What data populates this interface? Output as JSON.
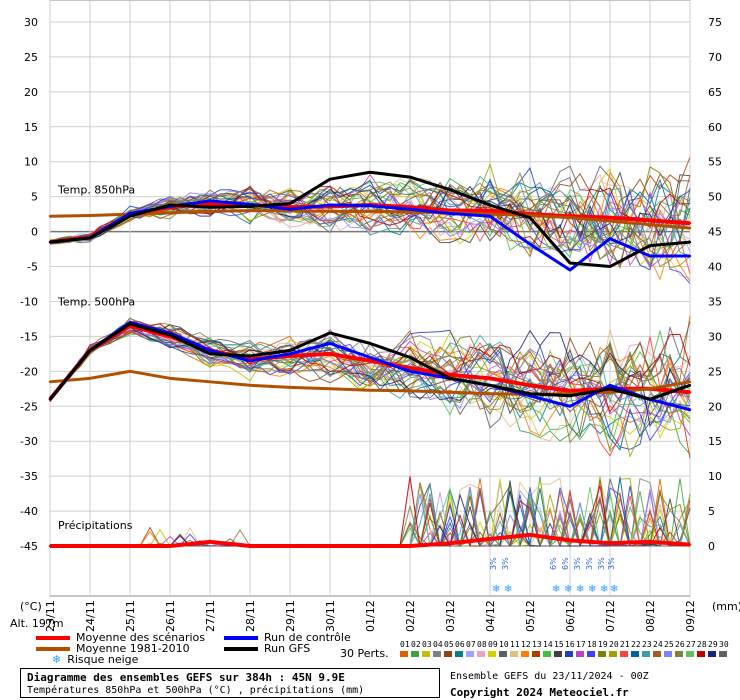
{
  "chart_data": {
    "type": "line",
    "title": "Diagramme des ensembles GEFS sur 384h : 45N 9.9E",
    "subtitle": "Températures 850hPa et 500hPa (°C) , précipitations (mm)",
    "left_axis_label": "(°C)",
    "right_axis_label": "(mm)",
    "altitude_label": "Alt. 197m",
    "left_ticks": [
      30,
      25,
      20,
      15,
      10,
      5,
      0,
      -5,
      -10,
      -15,
      -20,
      -25,
      -30,
      -35,
      -40,
      -45
    ],
    "right_ticks": [
      75,
      70,
      65,
      60,
      55,
      50,
      45,
      40,
      35,
      30,
      25,
      20,
      15,
      10,
      5,
      0
    ],
    "ylim": [
      -45,
      30
    ],
    "dates": [
      "23/11",
      "24/11",
      "25/11",
      "26/11",
      "27/11",
      "28/11",
      "29/11",
      "30/11",
      "01/12",
      "02/12",
      "03/12",
      "04/12",
      "05/12",
      "06/12",
      "07/12",
      "08/12",
      "09/12"
    ],
    "section_labels": [
      "Temp. 850hPa",
      "Temp. 500hPa",
      "Précipitations"
    ],
    "snow_risk_labels": [
      "3%",
      "3%",
      "6%",
      "6%",
      "3%",
      "3%",
      "3%",
      "3%"
    ],
    "series": [
      {
        "name": "Moyenne des scénarios (850hPa)",
        "color": "#ff0000",
        "values": [
          -1.5,
          -0.8,
          2.5,
          3.5,
          4.0,
          3.8,
          3.5,
          3.6,
          3.8,
          3.5,
          3.0,
          3.0,
          2.5,
          2.2,
          2.0,
          1.6,
          1.2
        ]
      },
      {
        "name": "Moyenne 1981-2010 (850hPa)",
        "color": "#b05000",
        "values": [
          2.2,
          2.3,
          2.5,
          2.7,
          2.9,
          3.0,
          3.0,
          2.9,
          2.9,
          2.8,
          2.7,
          2.5,
          2.3,
          2.0,
          1.5,
          1.0,
          0.5
        ]
      },
      {
        "name": "Run de contrôle (850hPa)",
        "color": "#0000ff",
        "values": [
          -1.5,
          -0.9,
          2.6,
          3.6,
          4.4,
          3.9,
          3.2,
          3.8,
          3.7,
          3.2,
          2.6,
          2.2,
          -1.8,
          -5.5,
          -1.0,
          -3.5,
          -3.5
        ]
      },
      {
        "name": "Run GFS (850hPa)",
        "color": "#000000",
        "values": [
          -1.5,
          -0.9,
          2.2,
          3.8,
          3.5,
          3.6,
          4.0,
          7.5,
          8.5,
          7.8,
          6.0,
          3.8,
          2.0,
          -4.5,
          -5.0,
          -2.0,
          -1.5
        ]
      },
      {
        "name": "Moyenne des scénarios (500hPa)",
        "color": "#ff0000",
        "values": [
          -24,
          -17,
          -13.5,
          -15,
          -17,
          -18.3,
          -17.8,
          -17.5,
          -18.5,
          -19.5,
          -20.5,
          -21,
          -22,
          -22.8,
          -22.5,
          -22.5,
          -23
        ]
      },
      {
        "name": "Moyenne 1981-2010 (500hPa)",
        "color": "#b05000",
        "values": [
          -21.5,
          -21,
          -20,
          -21,
          -21.5,
          -22,
          -22.3,
          -22.5,
          -22.7,
          -22.8,
          -23,
          -23.2,
          -23.3,
          -23.2,
          -23,
          -22.5,
          -21.5
        ]
      },
      {
        "name": "Run de contrôle (500hPa)",
        "color": "#0000ff",
        "values": [
          -24,
          -17,
          -13,
          -14.5,
          -17,
          -18.5,
          -17.5,
          -16,
          -18,
          -20,
          -21,
          -22,
          -23.5,
          -25,
          -22,
          -24,
          -25.5
        ]
      },
      {
        "name": "Run GFS (500hPa)",
        "color": "#000000",
        "values": [
          -24,
          -17,
          -13.2,
          -14.8,
          -17.5,
          -17.8,
          -17,
          -14.5,
          -16,
          -18,
          -21,
          -22,
          -23.2,
          -23.5,
          -22.5,
          -24,
          -22
        ]
      },
      {
        "name": "Moyenne des scénarios (précipitations)",
        "color": "#ff0000",
        "values": [
          0,
          0,
          0,
          0,
          0.3,
          0,
          0,
          0,
          0,
          0,
          0.2,
          0.5,
          0.8,
          0.4,
          0.2,
          0.3,
          0.1
        ]
      }
    ]
  },
  "legend": {
    "mean": "Moyenne des scénarios",
    "clim": "Moyenne 1981-2010",
    "control": "Run de contrôle",
    "gfs": "Run GFS",
    "snow": "Risque neige",
    "perts_label": "30 Perts.",
    "perts_numbers": [
      "01",
      "02",
      "03",
      "04",
      "05",
      "06",
      "07",
      "08",
      "09",
      "10",
      "11",
      "12",
      "13",
      "14",
      "15",
      "16",
      "17",
      "18",
      "19",
      "20",
      "21",
      "22",
      "23",
      "24",
      "25",
      "26",
      "27",
      "28",
      "29",
      "30"
    ],
    "perts_colors": [
      "#e06000",
      "#40a040",
      "#c0c000",
      "#808080",
      "#8b4513",
      "#008080",
      "#a0a0ff",
      "#f0a0c0",
      "#d0d000",
      "#606060",
      "#e0c080",
      "#ff8000",
      "#b04000",
      "#40c040",
      "#404040",
      "#2040c0",
      "#c040c0",
      "#4040ff",
      "#808000",
      "#a0a000",
      "#ff4040",
      "#0060a0",
      "#40a0a0",
      "#a06020",
      "#8080ff",
      "#808040",
      "#60c060",
      "#c00000",
      "#202080",
      "#606060"
    ]
  },
  "footer": {
    "title": "Diagramme des ensembles GEFS sur 384h : 45N 9.9E",
    "subtitle": "Températures 850hPa et 500hPa (°C) , précipitations (mm)",
    "run": "Ensemble GEFS du 23/11/2024 - 00Z",
    "copyright": "Copyright 2024 Meteociel.fr"
  }
}
